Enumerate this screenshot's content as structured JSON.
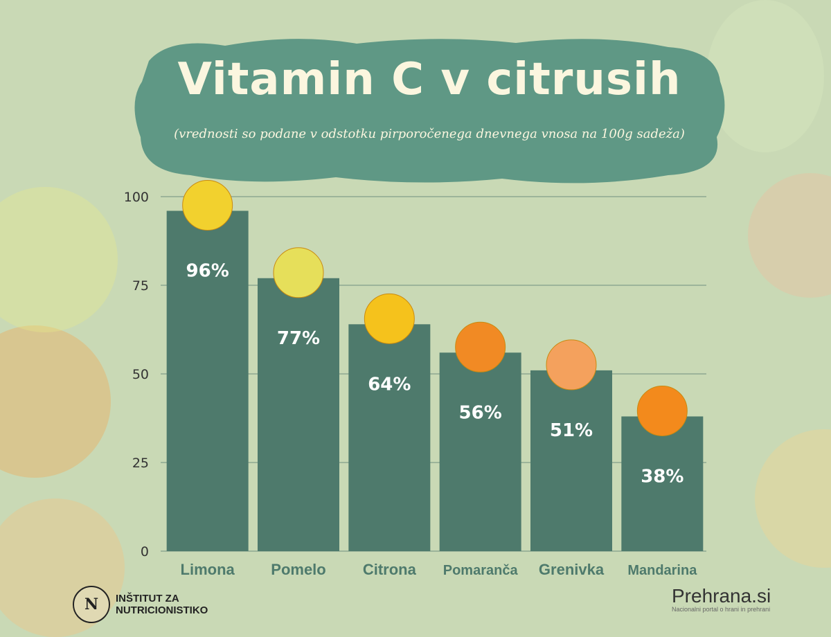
{
  "title": "Vitamin C v citrusih",
  "subtitle": "(vrednosti so podane v odstotku pirporočenega dnevnega vnosa na 100g sadeža)",
  "colors": {
    "background": "#c9d9b5",
    "banner": "#5f9885",
    "bar": "#4e7a6c",
    "label": "#4e7a6c",
    "value_text": "#ffffff",
    "grid": "#6f8f80"
  },
  "chart_data": {
    "type": "bar",
    "categories": [
      "Limona",
      "Pomelo",
      "Citrona",
      "Pomaranča",
      "Grenivka",
      "Mandarina"
    ],
    "values": [
      96,
      77,
      64,
      56,
      51,
      38
    ],
    "value_labels": [
      "96%",
      "77%",
      "64%",
      "56%",
      "51%",
      "38%"
    ],
    "ylim": [
      0,
      100
    ],
    "yticks": [
      0,
      25,
      50,
      75,
      100
    ],
    "grid": true,
    "fruit_icons": [
      "lemon-icon",
      "pomelo-icon",
      "citron-icon",
      "orange-icon",
      "grapefruit-icon",
      "mandarin-icon"
    ]
  },
  "footer": {
    "institute_line1": "INŠTITUT ZA",
    "institute_line2": "NUTRICIONISTIKO",
    "institute_seal": "N",
    "brand": "Prehrana.si",
    "brand_tagline": "Nacionalni portal o hrani in prehrani"
  }
}
